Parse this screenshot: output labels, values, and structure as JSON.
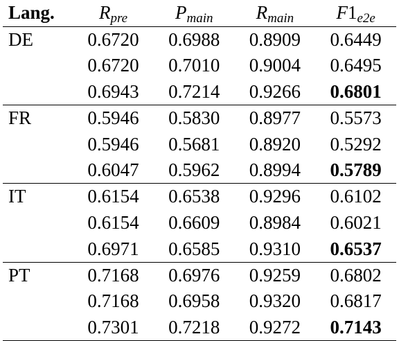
{
  "table": {
    "headers": {
      "lang": "Lang.",
      "r_pre": {
        "base": "R",
        "sub": "pre"
      },
      "p_main": {
        "base": "P",
        "sub": "main"
      },
      "r_main": {
        "base": "R",
        "sub": "main"
      },
      "f1_e2e": {
        "base": "F",
        "num": "1",
        "sub": "e2e"
      }
    },
    "groups": [
      {
        "lang": "DE",
        "rows": [
          {
            "r_pre": "0.6720",
            "p_main": "0.6988",
            "r_main": "0.8909",
            "f1_e2e": "0.6449",
            "f1_bold": false
          },
          {
            "r_pre": "0.6720",
            "p_main": "0.7010",
            "r_main": "0.9004",
            "f1_e2e": "0.6495",
            "f1_bold": false
          },
          {
            "r_pre": "0.6943",
            "p_main": "0.7214",
            "r_main": "0.9266",
            "f1_e2e": "0.6801",
            "f1_bold": true
          }
        ]
      },
      {
        "lang": "FR",
        "rows": [
          {
            "r_pre": "0.5946",
            "p_main": "0.5830",
            "r_main": "0.8977",
            "f1_e2e": "0.5573",
            "f1_bold": false
          },
          {
            "r_pre": "0.5946",
            "p_main": "0.5681",
            "r_main": "0.8920",
            "f1_e2e": "0.5292",
            "f1_bold": false
          },
          {
            "r_pre": "0.6047",
            "p_main": "0.5962",
            "r_main": "0.8994",
            "f1_e2e": "0.5789",
            "f1_bold": true
          }
        ]
      },
      {
        "lang": "IT",
        "rows": [
          {
            "r_pre": "0.6154",
            "p_main": "0.6538",
            "r_main": "0.9296",
            "f1_e2e": "0.6102",
            "f1_bold": false
          },
          {
            "r_pre": "0.6154",
            "p_main": "0.6609",
            "r_main": "0.8984",
            "f1_e2e": "0.6021",
            "f1_bold": false
          },
          {
            "r_pre": "0.6971",
            "p_main": "0.6585",
            "r_main": "0.9310",
            "f1_e2e": "0.6537",
            "f1_bold": true
          }
        ]
      },
      {
        "lang": "PT",
        "rows": [
          {
            "r_pre": "0.7168",
            "p_main": "0.6976",
            "r_main": "0.9259",
            "f1_e2e": "0.6802",
            "f1_bold": false
          },
          {
            "r_pre": "0.7168",
            "p_main": "0.6958",
            "r_main": "0.9320",
            "f1_e2e": "0.6817",
            "f1_bold": false
          },
          {
            "r_pre": "0.7301",
            "p_main": "0.7218",
            "r_main": "0.9272",
            "f1_e2e": "0.7143",
            "f1_bold": true
          }
        ]
      }
    ]
  }
}
